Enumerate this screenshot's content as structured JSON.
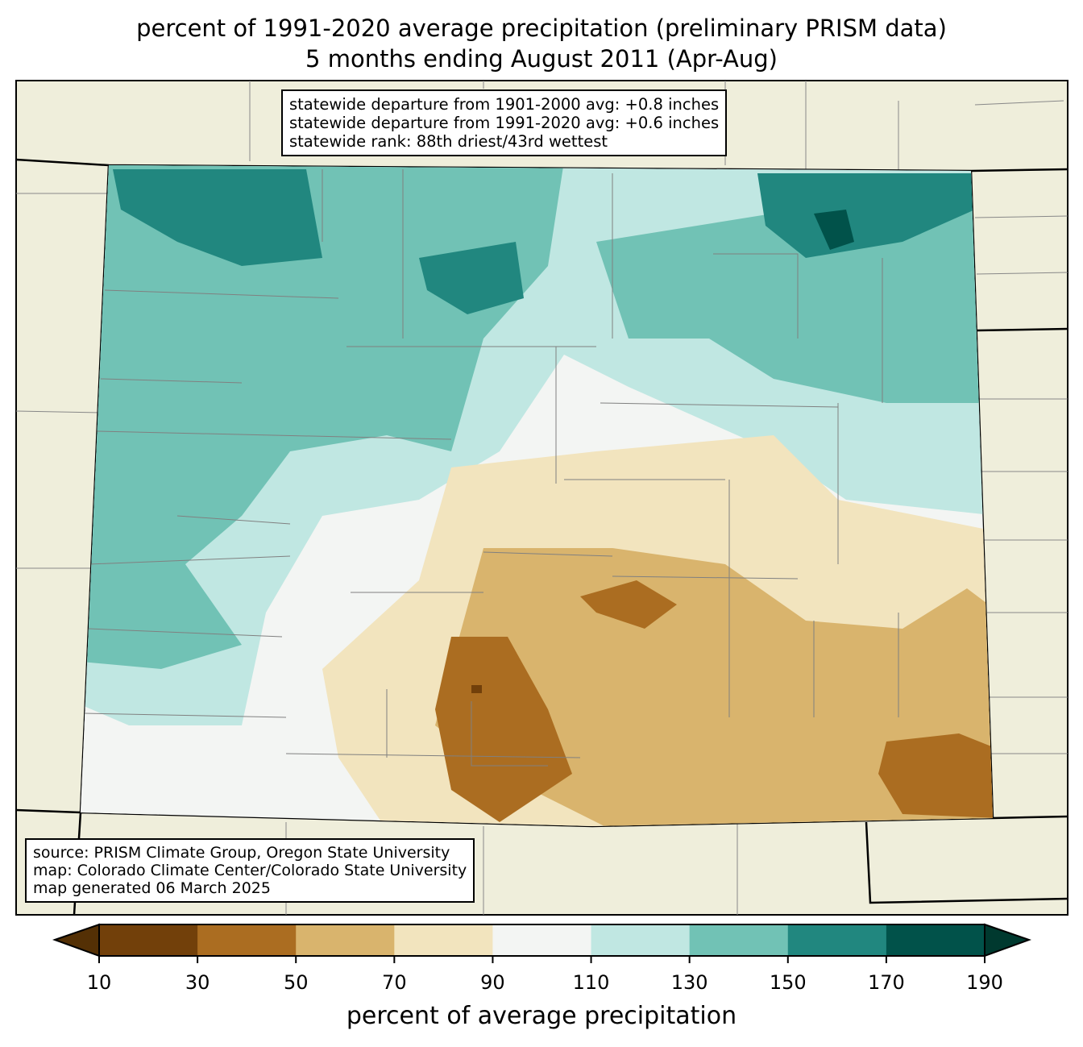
{
  "title": {
    "line1": "percent of 1991-2020 average precipitation (preliminary PRISM data)",
    "line2": "5 months ending August 2011 (Apr-Aug)"
  },
  "stats": {
    "line1": "statewide departure from 1901-2000 avg: +0.8 inches",
    "line2": "statewide departure from 1991-2020 avg: +0.6 inches",
    "line3": "statewide rank: 88th driest/43rd wettest"
  },
  "source": {
    "line1": "source: PRISM Climate Group, Oregon State University",
    "line2": "map: Colorado Climate Center/Colorado State University",
    "line3": "map generated 06 March 2025"
  },
  "colorbar": {
    "label": "percent of average precipitation",
    "ticks": [
      "10",
      "30",
      "50",
      "70",
      "90",
      "110",
      "130",
      "150",
      "170",
      "190"
    ],
    "colors": [
      "#72400a",
      "#ab6d21",
      "#d9b46d",
      "#f2e4be",
      "#f3f5f3",
      "#c0e7e2",
      "#71c2b5",
      "#21877f",
      "#01524a"
    ],
    "under": "#543005",
    "over": "#00392f"
  },
  "colors": {
    "land": "#efeedb"
  }
}
